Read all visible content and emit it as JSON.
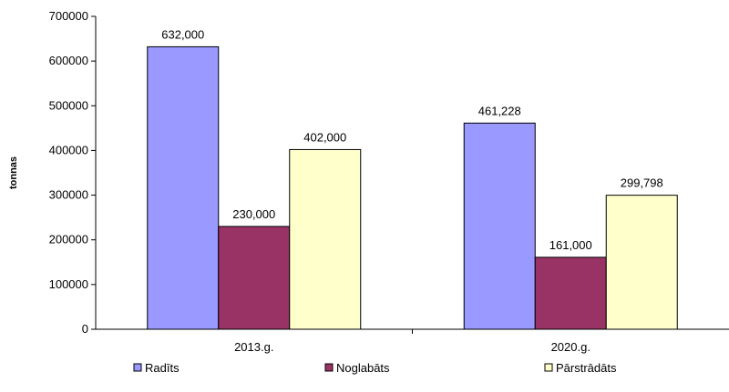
{
  "chart_data": {
    "type": "bar",
    "title": "",
    "xlabel": "",
    "ylabel": "tonnas",
    "ylim": [
      0,
      700000
    ],
    "yticks": [
      0,
      100000,
      200000,
      300000,
      400000,
      500000,
      600000,
      700000
    ],
    "grid": false,
    "legend_position": "bottom",
    "categories": [
      "2013.g.",
      "2020.g."
    ],
    "series": [
      {
        "name": "Radīts",
        "color": "#9999ff",
        "values": [
          632000,
          461228
        ],
        "labels": [
          "632,000",
          "461,228"
        ]
      },
      {
        "name": "Noglabāts",
        "color": "#993366",
        "values": [
          230000,
          161000
        ],
        "labels": [
          "230,000",
          "161,000"
        ]
      },
      {
        "name": "Pārstrādāts",
        "color": "#ffffcc",
        "values": [
          402000,
          299798
        ],
        "labels": [
          "402,000",
          "299,798"
        ]
      }
    ]
  }
}
